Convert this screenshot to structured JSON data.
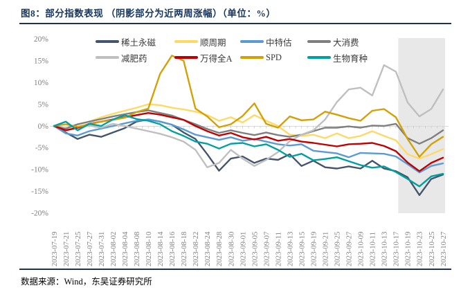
{
  "title": "图8：部分指数表现 （阴影部分为近两周涨幅）（单位：%）",
  "source": "数据来源：Wind，东吴证券研究所",
  "colors": {
    "title_text": "#17375E",
    "divider_rule": "#1F3050",
    "axis_text": "#7F7F7F",
    "zero_line": "#D9D9D9",
    "tick_mark": "#C9C9C9",
    "shaded_region": "#E8E8E8",
    "legend_text": "#3A3A3A"
  },
  "legend_rows": [
    [
      "稀土永磁",
      "顺周期",
      "中特估",
      "大消费"
    ],
    [
      "减肥药",
      "万得全A",
      "SPD",
      "生物育种"
    ]
  ],
  "chart_data": {
    "type": "line",
    "title": "部分指数表现",
    "unit": "%",
    "xlabel": "",
    "ylabel": "",
    "ylim": [
      -20,
      20
    ],
    "ytick_step": 5,
    "y_tick_labels": [
      "20%",
      "15%",
      "10%",
      "5%",
      "0%",
      "-5%",
      "-10%",
      "-15%",
      "-20%"
    ],
    "grid": "zero-line-only",
    "legend_position": "top-inside-two-rows",
    "shaded_region": {
      "from": "2023-10-17",
      "to": "2023-10-27",
      "meaning": "阴影部分为近两周涨幅",
      "color": "#E8E8E8"
    },
    "x": [
      "2023-07-19",
      "2023-07-21",
      "2023-07-25",
      "2023-07-27",
      "2023-07-31",
      "2023-08-02",
      "2023-08-04",
      "2023-08-08",
      "2023-08-10",
      "2023-08-14",
      "2023-08-16",
      "2023-08-18",
      "2023-08-22",
      "2023-08-24",
      "2023-08-28",
      "2023-08-30",
      "2023-09-01",
      "2023-09-05",
      "2023-09-07",
      "2023-09-11",
      "2023-09-13",
      "2023-09-15",
      "2023-09-19",
      "2023-09-21",
      "2023-09-25",
      "2023-09-27",
      "2023-10-09",
      "2023-10-11",
      "2023-10-13",
      "2023-10-17",
      "2023-10-19",
      "2023-10-23",
      "2023-10-25",
      "2023-10-27"
    ],
    "series": [
      {
        "name": "稀土永磁",
        "color": "#44546A",
        "values": [
          0,
          -1.5,
          -3,
          -2,
          -2.5,
          -1.5,
          -0.5,
          1,
          1.5,
          1,
          0.3,
          -1.5,
          -3,
          -6.5,
          -10.3,
          -7.5,
          -7,
          -8.5,
          -7.5,
          -7.8,
          -6.5,
          -9.2,
          -8,
          -9.5,
          -9.8,
          -9.3,
          -9.8,
          -8,
          -9.8,
          -10.4,
          -11.8,
          -15.9,
          -12.2,
          -11.2
        ]
      },
      {
        "name": "顺周期",
        "color": "#FFD966",
        "values": [
          0,
          -0.7,
          0.3,
          1,
          2,
          2.8,
          3.5,
          4.2,
          5,
          4.8,
          4.2,
          3.8,
          3.3,
          2.5,
          1.2,
          2,
          0.8,
          2.5,
          1.2,
          0,
          -2,
          -2.3,
          -2,
          -2.8,
          -1.7,
          -2.8,
          -2.3,
          -1.2,
          -2.3,
          -3.3,
          -6.5,
          -7.5,
          -6.5,
          -5.3
        ]
      },
      {
        "name": "中特估",
        "color": "#5B9BD5",
        "values": [
          0,
          -1.7,
          -2.2,
          -1.2,
          -0.6,
          0,
          0.6,
          1.2,
          1.5,
          1,
          0.3,
          -0.8,
          -2,
          -2.6,
          -3.2,
          -2.6,
          -3.4,
          -3,
          -3.6,
          -4.2,
          -4.5,
          -4.2,
          -5.7,
          -6,
          -6.3,
          -7.2,
          -6.2,
          -6.3,
          -6.4,
          -7,
          -8.8,
          -10.7,
          -9.2,
          -8.6
        ]
      },
      {
        "name": "大消费",
        "color": "#7F7F7F",
        "values": [
          0,
          -0.6,
          0.4,
          1,
          1.6,
          2.2,
          2.7,
          3.2,
          3.6,
          3,
          2.4,
          1.4,
          0.4,
          -0.7,
          -1.6,
          -1,
          -1.6,
          -2.1,
          -1.5,
          -2.1,
          -2.5,
          -2,
          -1.2,
          -0.4,
          -0.4,
          -0.1,
          -0.4,
          0.1,
          0,
          0.5,
          -2.8,
          -4.1,
          -2.8,
          -1
        ]
      },
      {
        "name": "减肥药",
        "color": "#BFBFBF",
        "values": [
          0,
          -1,
          -0.5,
          0.1,
          -0.4,
          0.5,
          0,
          -0.6,
          -1.2,
          -1.8,
          -2.6,
          -3.6,
          -5.5,
          -9.5,
          -8.5,
          -5.5,
          -7.5,
          -9.2,
          -7.8,
          -6,
          -3.5,
          -2,
          -1,
          1.5,
          5.5,
          8.4,
          8.8,
          7,
          14,
          12.5,
          5.4,
          2.2,
          3.9,
          8.4
        ]
      },
      {
        "name": "万得全A",
        "color": "#C00000",
        "values": [
          0,
          -1,
          -0.4,
          0.5,
          1,
          1.5,
          2,
          2.5,
          3,
          2.6,
          2,
          1.4,
          0,
          -1.2,
          -2.2,
          -1.6,
          -2.6,
          -3.1,
          -2.5,
          -3.4,
          -3,
          -3.6,
          -3.9,
          -4.3,
          -4.7,
          -4.2,
          -4.1,
          -3.9,
          -4.6,
          -5.8,
          -8.4,
          -10.4,
          -8.5,
          -7.3
        ]
      },
      {
        "name": "SPD",
        "color": "#D2A106",
        "values": [
          0,
          0.4,
          -0.2,
          0.4,
          1,
          1.4,
          1.9,
          3.2,
          4,
          12,
          16.2,
          15,
          4,
          2.2,
          -0.3,
          0.4,
          2.3,
          5.2,
          0.5,
          -0.4,
          2.2,
          1.3,
          1.5,
          3.3,
          2.6,
          1.8,
          1.2,
          3.5,
          3.9,
          2,
          -3,
          -7.1,
          -4.2,
          -2.5
        ]
      },
      {
        "name": "生物育种",
        "color": "#00A0A0",
        "values": [
          0,
          1,
          -1,
          0.5,
          0,
          1.5,
          2.5,
          1.6,
          1.2,
          0.4,
          -1.2,
          -2.3,
          -3.6,
          -4.1,
          -5.2,
          -4.1,
          -3.9,
          -4.7,
          -4.2,
          -5.5,
          -7.1,
          -6.4,
          -7.9,
          -7.6,
          -7.2,
          -8.1,
          -9,
          -9.6,
          -9.3,
          -10.6,
          -12.2,
          -13.9,
          -11.6,
          -11
        ]
      }
    ]
  }
}
